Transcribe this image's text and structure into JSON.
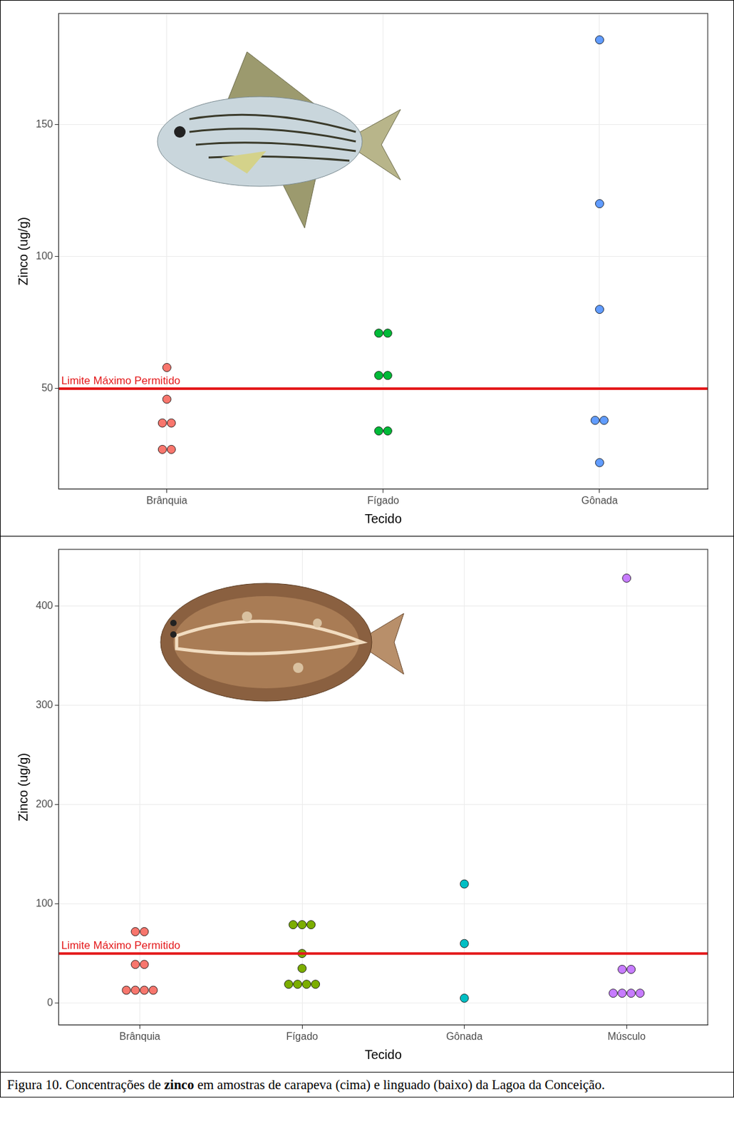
{
  "chart_data": [
    {
      "type": "scatter",
      "x_label": "Tecido",
      "y_label": "Zinco (ug/g)",
      "categories": [
        "Brânquia",
        "Fígado",
        "Gônada"
      ],
      "colors": [
        "#F8766D",
        "#00BA38",
        "#619CFF"
      ],
      "values": [
        [
          58,
          46,
          37,
          37,
          27,
          27
        ],
        [
          71,
          71,
          55,
          55,
          34,
          34
        ],
        [
          182,
          120,
          80,
          38,
          38,
          22
        ]
      ],
      "ylim": [
        12,
        192
      ],
      "yticks": [
        50,
        100,
        150
      ],
      "grid": true,
      "annotations": [
        {
          "text": "Limite Máximo Permitido",
          "y": 50,
          "color": "#E41A1C"
        }
      ]
    },
    {
      "type": "scatter",
      "x_label": "Tecido",
      "y_label": "Zinco (ug/g)",
      "categories": [
        "Brânquia",
        "Fígado",
        "Gônada",
        "Músculo"
      ],
      "colors": [
        "#F8766D",
        "#7CAE00",
        "#00BFC4",
        "#C77CFF"
      ],
      "values": [
        [
          72,
          72,
          39,
          39,
          13,
          13,
          13,
          13
        ],
        [
          79,
          79,
          79,
          50,
          35,
          19,
          19,
          19,
          19
        ],
        [
          120,
          60,
          5
        ],
        [
          428,
          34,
          34,
          10,
          10,
          10,
          10
        ]
      ],
      "ylim": [
        -22,
        457
      ],
      "yticks": [
        0,
        100,
        200,
        300,
        400
      ],
      "grid": true,
      "annotations": [
        {
          "text": "Limite Máximo Permitido",
          "y": 50,
          "color": "#E41A1C"
        }
      ]
    }
  ],
  "caption": [
    {
      "text": "Figura 10. Concentrações de ",
      "bold": false
    },
    {
      "text": "zinco",
      "bold": true
    },
    {
      "text": " em amostras de carapeva (cima) e linguado (baixo) da Lagoa da Conceição.",
      "bold": false
    }
  ]
}
